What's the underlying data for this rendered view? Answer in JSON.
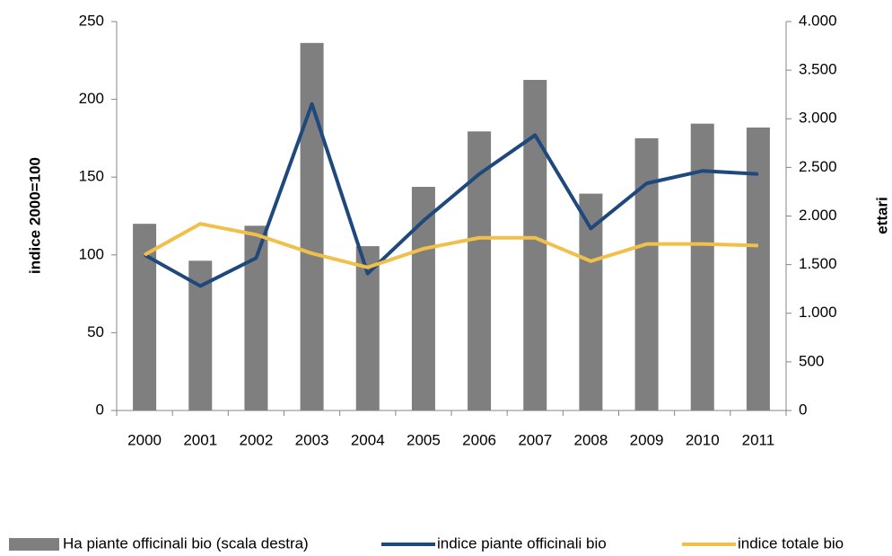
{
  "chart_data": {
    "type": "combo",
    "categories": [
      "2000",
      "2001",
      "2002",
      "2003",
      "2004",
      "2005",
      "2006",
      "2007",
      "2008",
      "2009",
      "2010",
      "2011"
    ],
    "ylabel": "indice 2000=100",
    "y2label": "ettari",
    "ylim": [
      0,
      250
    ],
    "yticks": [
      0,
      50,
      100,
      150,
      200,
      250
    ],
    "y2lim": [
      0,
      4000
    ],
    "y2ticks": [
      0,
      500,
      {
        "value": 1000,
        "label": "1.000"
      },
      {
        "value": 1500,
        "label": "1.500"
      },
      {
        "value": 2000,
        "label": "2.000"
      },
      {
        "value": 2500,
        "label": "2.500"
      },
      {
        "value": 3000,
        "label": "3.000"
      },
      {
        "value": 3500,
        "label": "3.500"
      },
      {
        "value": 4000,
        "label": "4.000"
      }
    ],
    "series": [
      {
        "name": "Ha piante officinali bio (scala destra)",
        "type": "bar",
        "axis": "y2",
        "color": "#7f7f7f",
        "values": [
          1920,
          1540,
          1900,
          3780,
          1690,
          2300,
          2870,
          3400,
          2230,
          2800,
          2950,
          2910
        ]
      },
      {
        "name": "indice piante officinali bio",
        "type": "line",
        "color": "#1f497d",
        "values": [
          100,
          80,
          98,
          197,
          88,
          122,
          152,
          177,
          117,
          146,
          154,
          152
        ]
      },
      {
        "name": "indice totale bio",
        "type": "line",
        "color": "#f0c04a",
        "values": [
          100,
          120,
          113,
          101,
          92,
          104,
          111,
          111,
          96,
          107,
          107,
          106
        ]
      }
    ]
  }
}
